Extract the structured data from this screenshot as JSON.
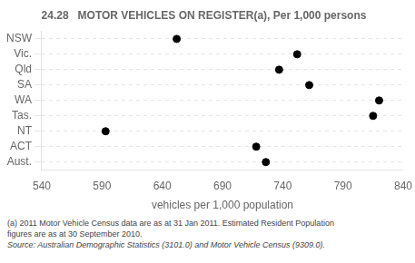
{
  "chart_data": {
    "type": "scatter",
    "title": "24.28   MOTOR VEHICLES ON REGISTER(a), Per 1,000 persons",
    "categories": [
      "NSW",
      "Vic.",
      "Qld",
      "SA",
      "WA",
      "Tas.",
      "NT",
      "ACT",
      "Aust."
    ],
    "values": [
      652,
      752,
      737,
      762,
      820,
      815,
      593,
      718,
      726
    ],
    "color": "#000000",
    "orientation": "horizontal",
    "xlim": [
      540,
      840
    ],
    "xticks": [
      540,
      590,
      640,
      690,
      740,
      790,
      840
    ],
    "xlabel": "vehicles per 1,000 population",
    "grid": "y",
    "annotations": [
      "(a) 2011 Motor Vehicle Census data are as at 31 Jan 2011. Estimated Resident Population",
      "figures are as at 30 September 2010.",
      "Source: Australian Demographic Statistics (3101.0) and Motor Vehicle Census (9309.0)."
    ]
  }
}
